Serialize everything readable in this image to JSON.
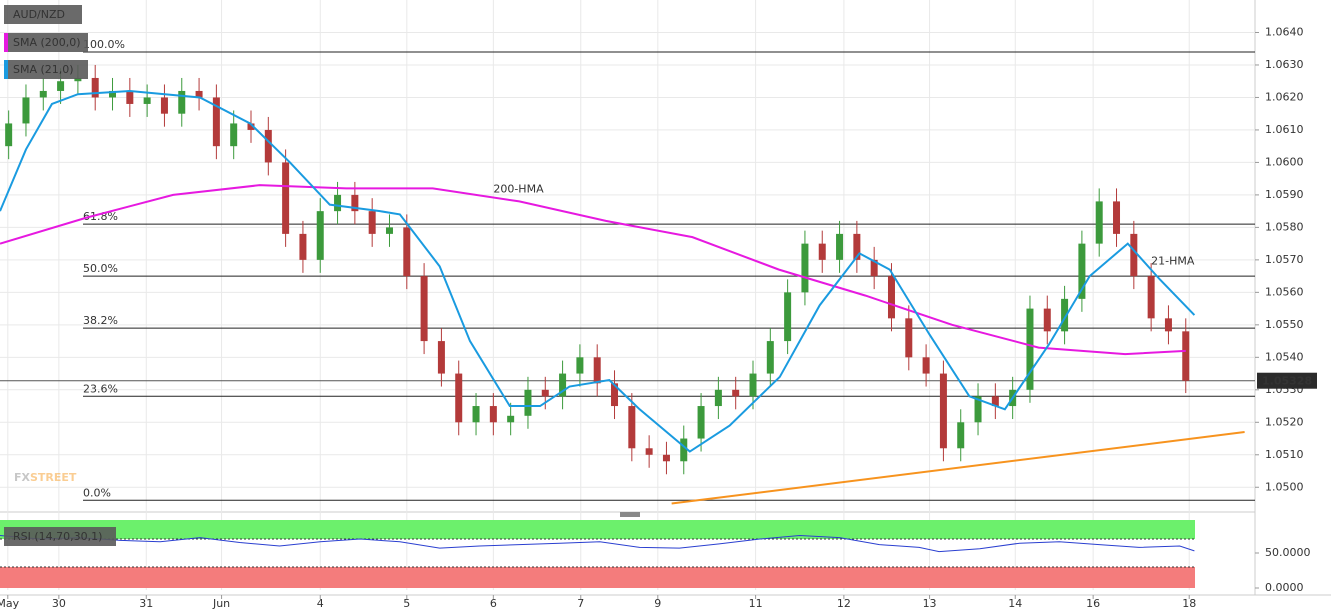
{
  "chart_data": {
    "type": "candlestick",
    "symbol": "AUD/NZD",
    "x": [
      1,
      3,
      5,
      7,
      9,
      11,
      13,
      15,
      17,
      19,
      21,
      23,
      25,
      27,
      29,
      31,
      33,
      35,
      37,
      39,
      41,
      43,
      45,
      47,
      49,
      51,
      53,
      55,
      57,
      59,
      61,
      63,
      65,
      67,
      69,
      71,
      73,
      75,
      77,
      79,
      81,
      83,
      85,
      87,
      89,
      91,
      93,
      95,
      97,
      99,
      101,
      103,
      105,
      107,
      109,
      111,
      113,
      115,
      117,
      119,
      121,
      123,
      125,
      127,
      129,
      131,
      133,
      135,
      137
    ],
    "open": [
      1.0605,
      1.0612,
      1.062,
      1.0622,
      1.0625,
      1.0626,
      1.062,
      1.0622,
      1.0618,
      1.062,
      1.0615,
      1.0622,
      1.062,
      1.0605,
      1.0612,
      1.061,
      1.06,
      1.0578,
      1.057,
      1.0585,
      1.059,
      1.0585,
      1.0578,
      1.058,
      1.0565,
      1.0545,
      1.0535,
      1.052,
      1.0525,
      1.052,
      1.0522,
      1.053,
      1.0528,
      1.0535,
      1.054,
      1.0532,
      1.0525,
      1.0512,
      1.051,
      1.0508,
      1.0515,
      1.0525,
      1.053,
      1.0528,
      1.0535,
      1.0545,
      1.056,
      1.0575,
      1.057,
      1.0578,
      1.057,
      1.0565,
      1.0552,
      1.054,
      1.0535,
      1.0512,
      1.052,
      1.0528,
      1.0525,
      1.053,
      1.0555,
      1.0548,
      1.0558,
      1.0575,
      1.0588,
      1.0578,
      1.0565,
      1.0552,
      1.0548
    ],
    "high": [
      1.0616,
      1.0624,
      1.0626,
      1.0629,
      1.063,
      1.063,
      1.0626,
      1.0626,
      1.0624,
      1.0624,
      1.0626,
      1.0626,
      1.0624,
      1.0616,
      1.0616,
      1.0614,
      1.0604,
      1.0582,
      1.0589,
      1.0594,
      1.0594,
      1.0589,
      1.0584,
      1.0584,
      1.0569,
      1.0549,
      1.0539,
      1.0529,
      1.0529,
      1.0526,
      1.0534,
      1.0534,
      1.0539,
      1.0544,
      1.0544,
      1.0536,
      1.0529,
      1.0516,
      1.0514,
      1.0519,
      1.0529,
      1.0534,
      1.0534,
      1.0539,
      1.0549,
      1.0564,
      1.0579,
      1.0579,
      1.0582,
      1.0582,
      1.0574,
      1.0569,
      1.0556,
      1.0544,
      1.0539,
      1.0524,
      1.0532,
      1.0532,
      1.0534,
      1.0559,
      1.0559,
      1.0562,
      1.0579,
      1.0592,
      1.0592,
      1.0582,
      1.0569,
      1.0556,
      1.0552
    ],
    "low": [
      1.0601,
      1.0608,
      1.0616,
      1.0618,
      1.0621,
      1.0616,
      1.0616,
      1.0614,
      1.0614,
      1.0611,
      1.0611,
      1.0616,
      1.0601,
      1.0601,
      1.0606,
      1.0596,
      1.0574,
      1.0566,
      1.0566,
      1.0581,
      1.0581,
      1.0574,
      1.0574,
      1.0561,
      1.0541,
      1.0531,
      1.0516,
      1.0516,
      1.0516,
      1.0516,
      1.0518,
      1.0524,
      1.0524,
      1.0531,
      1.0528,
      1.0521,
      1.0508,
      1.0506,
      1.0504,
      1.0504,
      1.0511,
      1.0521,
      1.0524,
      1.0524,
      1.0531,
      1.0541,
      1.0556,
      1.0566,
      1.0566,
      1.0566,
      1.0561,
      1.0548,
      1.0536,
      1.0531,
      1.0508,
      1.0508,
      1.0516,
      1.0521,
      1.0521,
      1.0526,
      1.0544,
      1.0544,
      1.0554,
      1.0571,
      1.0574,
      1.0561,
      1.0548,
      1.0544,
      1.0529
    ],
    "close": [
      1.0612,
      1.062,
      1.0622,
      1.0625,
      1.0626,
      1.062,
      1.0622,
      1.0618,
      1.062,
      1.0615,
      1.0622,
      1.062,
      1.0605,
      1.0612,
      1.061,
      1.06,
      1.0578,
      1.057,
      1.0585,
      1.059,
      1.0585,
      1.0578,
      1.058,
      1.0565,
      1.0545,
      1.0535,
      1.052,
      1.0525,
      1.052,
      1.0522,
      1.053,
      1.0528,
      1.0535,
      1.054,
      1.0532,
      1.0525,
      1.0512,
      1.051,
      1.0508,
      1.0515,
      1.0525,
      1.053,
      1.0528,
      1.0535,
      1.0545,
      1.056,
      1.0575,
      1.057,
      1.0578,
      1.057,
      1.0565,
      1.0552,
      1.054,
      1.0535,
      1.0512,
      1.052,
      1.0528,
      1.0525,
      1.053,
      1.0555,
      1.0548,
      1.0558,
      1.0575,
      1.0588,
      1.0578,
      1.0565,
      1.0552,
      1.0548,
      1.05328
    ],
    "up_color": "#3c9a3c",
    "down_color": "#b33a3a",
    "series": [
      {
        "name": "SMA (200,0)",
        "label": "200-HMA",
        "color": "#e619e0",
        "x": [
          0,
          10,
          20,
          30,
          40,
          50,
          60,
          70,
          80,
          90,
          100,
          110,
          120,
          130,
          137
        ],
        "values": [
          1.0575,
          1.0583,
          1.059,
          1.0593,
          1.0592,
          1.0592,
          1.0588,
          1.0582,
          1.0577,
          1.0567,
          1.0559,
          1.055,
          1.0543,
          1.0541,
          1.0542
        ]
      },
      {
        "name": "SMA (21,0)",
        "label": "21-HMA",
        "color": "#1a9be0",
        "x": [
          0,
          3,
          6,
          9,
          15,
          23.1,
          28.9,
          33.5,
          38.1,
          43.9,
          46.2,
          50.8,
          54.3,
          58.9,
          62.4,
          65.8,
          70.4,
          73.9,
          79.7,
          84.3,
          90.1,
          94.7,
          99.3,
          102.8,
          107.4,
          112,
          116.1,
          121.2,
          125.9,
          130.3,
          134,
          138
        ],
        "values": [
          1.0585,
          1.0604,
          1.0618,
          1.0621,
          1.0622,
          1.062,
          1.0612,
          1.06,
          1.0587,
          1.0585,
          1.0584,
          1.0568,
          1.0545,
          1.0525,
          1.0525,
          1.0531,
          1.0533,
          1.0524,
          1.0511,
          1.0519,
          1.0534,
          1.0556,
          1.0572,
          1.0567,
          1.0547,
          1.0528,
          1.0524,
          1.0544,
          1.0565,
          1.0575,
          1.0564,
          1.0553
        ]
      }
    ],
    "fibonacci": [
      {
        "label": "100.0%",
        "value": 1.0634
      },
      {
        "label": "61.8%",
        "value": 1.0581
      },
      {
        "label": "50.0%",
        "value": 1.0565
      },
      {
        "label": "38.2%",
        "value": 1.0549
      },
      {
        "label": "23.6%",
        "value": 1.0528
      },
      {
        "label": "0.0%",
        "value": 1.0496
      }
    ],
    "trendline": {
      "color": "#f7931e",
      "x": [
        77.6,
        143.8
      ],
      "values": [
        1.0495,
        1.0517
      ]
    },
    "last_price": 1.05328,
    "watermark": [
      "FX",
      "STREET"
    ],
    "xlim": [
      0,
      145
    ],
    "ylim": [
      1.0493,
      1.065
    ],
    "yticks": [
      {
        "value": 1.05,
        "label": "1.0500"
      },
      {
        "value": 1.051,
        "label": "1.0510"
      },
      {
        "value": 1.052,
        "label": "1.0520"
      },
      {
        "value": 1.053,
        "label": "1.0530"
      },
      {
        "value": 1.054,
        "label": "1.0540"
      },
      {
        "value": 1.055,
        "label": "1.0550"
      },
      {
        "value": 1.056,
        "label": "1.0560"
      },
      {
        "value": 1.057,
        "label": "1.0570"
      },
      {
        "value": 1.058,
        "label": "1.0580"
      },
      {
        "value": 1.059,
        "label": "1.0590"
      },
      {
        "value": 1.06,
        "label": "1.0600"
      },
      {
        "value": 1.061,
        "label": "1.0610"
      },
      {
        "value": 1.062,
        "label": "1.0620"
      },
      {
        "value": 1.063,
        "label": "1.0630"
      },
      {
        "value": 1.064,
        "label": "1.0640"
      }
    ],
    "xticks": [
      {
        "value": 0.9,
        "label": "May"
      },
      {
        "value": 6.8,
        "label": "30"
      },
      {
        "value": 16.9,
        "label": "31"
      },
      {
        "value": 25.6,
        "label": "Jun"
      },
      {
        "value": 37,
        "label": "4"
      },
      {
        "value": 47,
        "label": "5"
      },
      {
        "value": 57,
        "label": "6"
      },
      {
        "value": 67.1,
        "label": "7"
      },
      {
        "value": 76,
        "label": "9"
      },
      {
        "value": 87.3,
        "label": "11"
      },
      {
        "value": 97.5,
        "label": "12"
      },
      {
        "value": 107.4,
        "label": "13"
      },
      {
        "value": 117.3,
        "label": "14"
      },
      {
        "value": 126.3,
        "label": "16"
      },
      {
        "value": 137.4,
        "label": "18"
      }
    ],
    "grid": true,
    "indicator": {
      "name": "RSI (14,70,30,1)",
      "color": "#2a3fd0",
      "x": [
        0,
        4.6,
        9.2,
        13.9,
        18.5,
        23.1,
        27.7,
        32.3,
        37,
        41.6,
        46.2,
        50.8,
        55.4,
        60,
        64.7,
        69.3,
        73.9,
        78.5,
        83.1,
        87.8,
        92.4,
        97,
        101.6,
        106.2,
        108.5,
        113.2,
        117.8,
        122.4,
        127,
        131.6,
        136.3,
        138
      ],
      "values": [
        75,
        70,
        72,
        68,
        66,
        72,
        65,
        60,
        66,
        70,
        66,
        57,
        60,
        62,
        64,
        66,
        58,
        57,
        63,
        70,
        75,
        72,
        62,
        58,
        52,
        56,
        64,
        66,
        62,
        58,
        60,
        53
      ],
      "ylim": [
        0,
        100
      ],
      "yticks": [
        {
          "value": 50,
          "label": "50.0000"
        },
        {
          "value": 0,
          "label": "0.0000"
        }
      ],
      "overbought": 70,
      "oversold": 30,
      "overbought_color": "#6cf06c",
      "oversold_color": "#f47c7c"
    }
  }
}
